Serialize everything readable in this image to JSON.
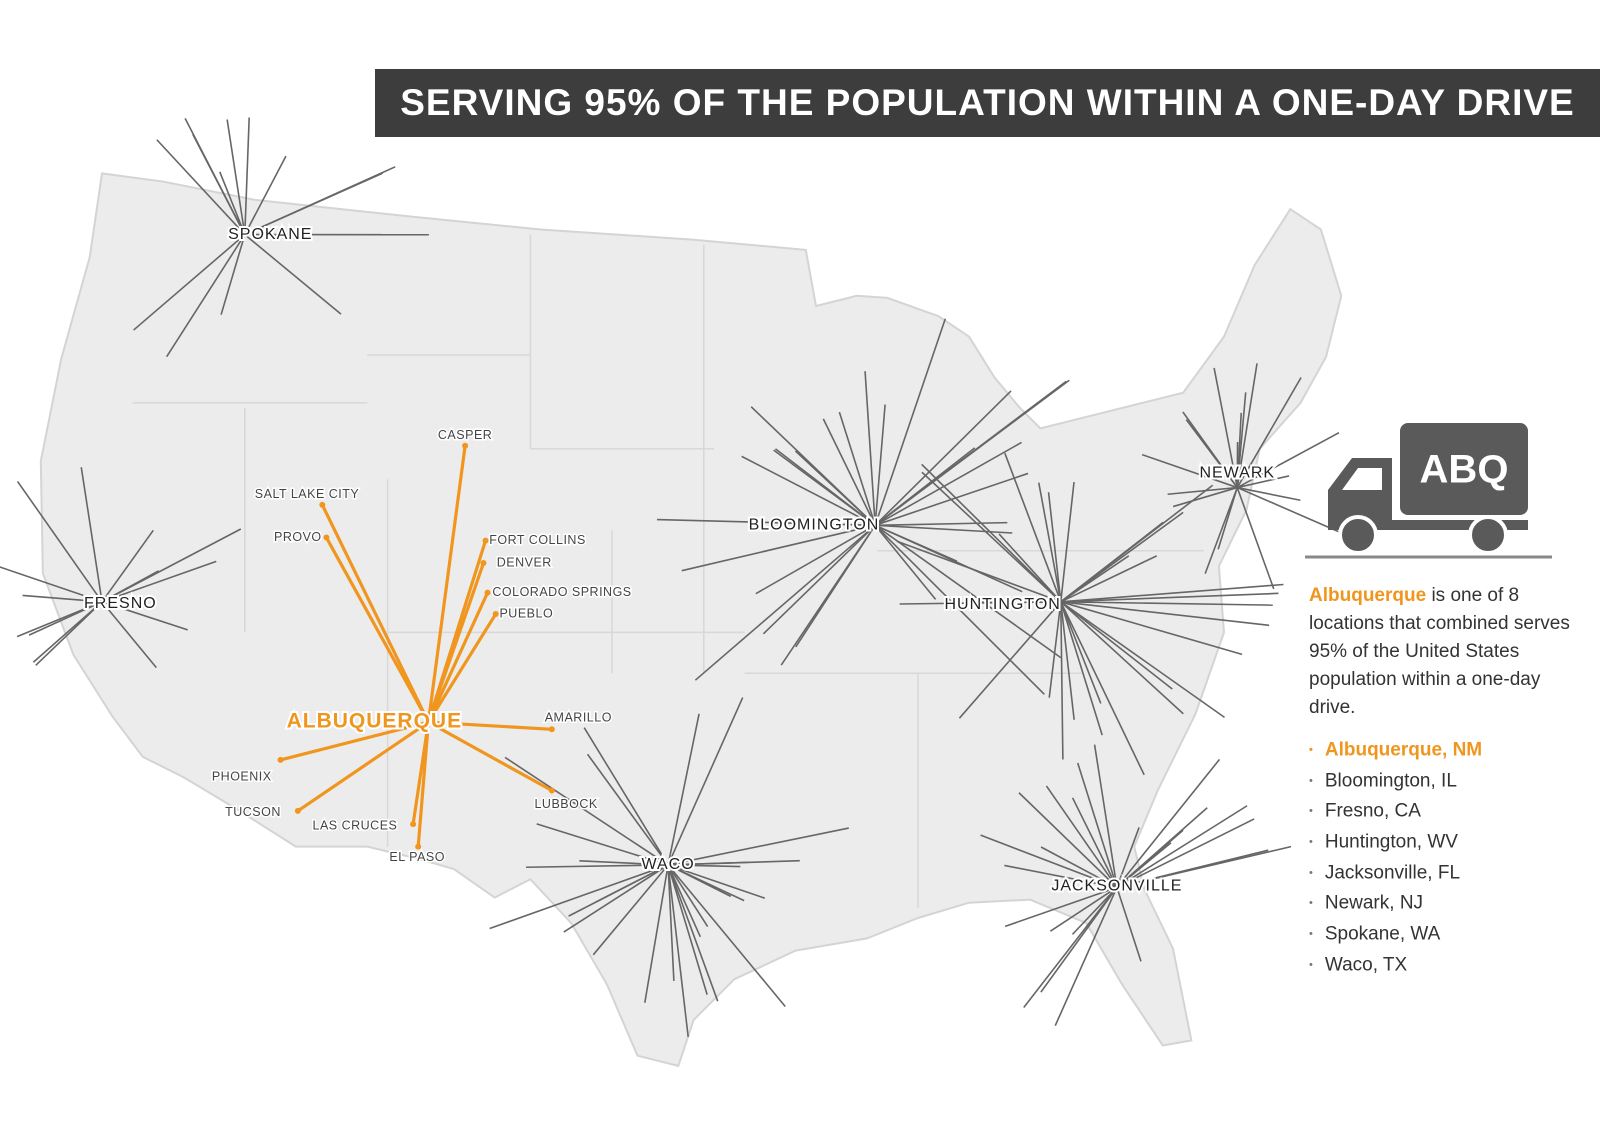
{
  "title": "SERVING 95% OF THE POPULATION WITHIN A ONE-DAY DRIVE",
  "truck_label": "ABQ",
  "featured_hub": "ALBUQUERQUE",
  "hubs": [
    "SPOKANE",
    "FRESNO",
    "BLOOMINGTON",
    "HUNTINGTON",
    "NEWARK",
    "WACO",
    "JACKSONVILLE"
  ],
  "destinations": [
    "CASPER",
    "SALT LAKE CITY",
    "PROVO",
    "FORT COLLINS",
    "DENVER",
    "COLORADO SPRINGS",
    "PUEBLO",
    "AMARILLO",
    "LUBBOCK",
    "PHOENIX",
    "TUCSON",
    "LAS CRUCES",
    "EL PASO"
  ],
  "description": {
    "highlight": "Albuquerque",
    "text": " is one of 8 locations that combined serves 95% of the United States population within a one-day drive."
  },
  "locations": [
    "Albuquerque, NM",
    "Bloomington, IL",
    "Fresno, CA",
    "Huntington, WV",
    "Jacksonville, FL",
    "Newark, NJ",
    "Spokane, WA",
    "Waco, TX"
  ]
}
